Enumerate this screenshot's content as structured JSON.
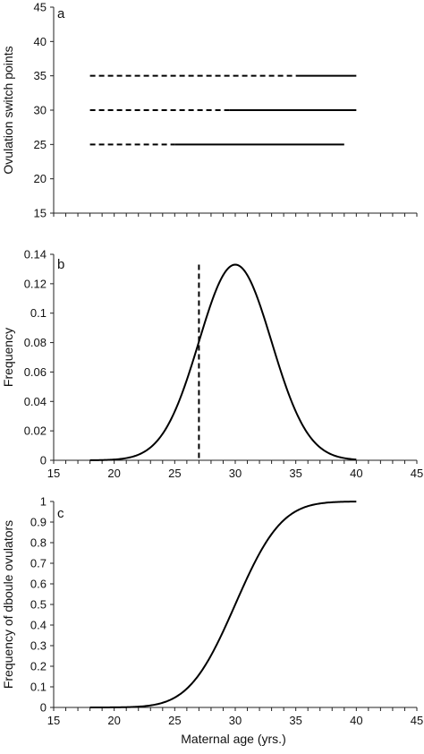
{
  "chart_data": [
    {
      "type": "line",
      "panel_label": "a",
      "ylabel": "Ovulation switch points",
      "ylim": [
        15,
        45
      ],
      "yticks": [
        "15",
        "20",
        "25",
        "30",
        "35",
        "40",
        "45"
      ],
      "xlim": [
        15,
        45
      ],
      "x_tick_labels_shown": false,
      "series": [
        {
          "level": 35,
          "dashed_x": [
            18,
            35
          ],
          "solid_x": [
            35,
            40
          ]
        },
        {
          "level": 30,
          "dashed_x": [
            18,
            29.5
          ],
          "solid_x": [
            29.5,
            40
          ]
        },
        {
          "level": 25,
          "dashed_x": [
            18,
            25
          ],
          "solid_x": [
            25,
            39
          ]
        }
      ]
    },
    {
      "type": "line",
      "panel_label": "b",
      "ylabel": "Frequency",
      "ylim": [
        0,
        0.14
      ],
      "yticks": [
        "0",
        "0.02",
        "0.04",
        "0.06",
        "0.08",
        "0.1",
        "0.12",
        "0.14"
      ],
      "xlim": [
        15,
        45
      ],
      "xticks": [
        "15",
        "20",
        "25",
        "30",
        "35",
        "40",
        "45"
      ],
      "curve": {
        "x_range": [
          18,
          40
        ],
        "mean": 30,
        "sd": 3,
        "peak": 0.133
      },
      "vertical_line_x": 27
    },
    {
      "type": "line",
      "panel_label": "c",
      "ylabel": "Frequency of dboule ovulators",
      "xlabel": "Maternal age (yrs.)",
      "ylim": [
        0,
        1
      ],
      "yticks": [
        "0",
        "0.1",
        "0.2",
        "0.3",
        "0.4",
        "0.5",
        "0.6",
        "0.7",
        "0.8",
        "0.9",
        "1"
      ],
      "xlim": [
        15,
        45
      ],
      "xticks": [
        "15",
        "20",
        "25",
        "30",
        "35",
        "40",
        "45"
      ],
      "curve": {
        "x_range": [
          18,
          40
        ],
        "mean": 30,
        "sd": 3
      }
    }
  ]
}
